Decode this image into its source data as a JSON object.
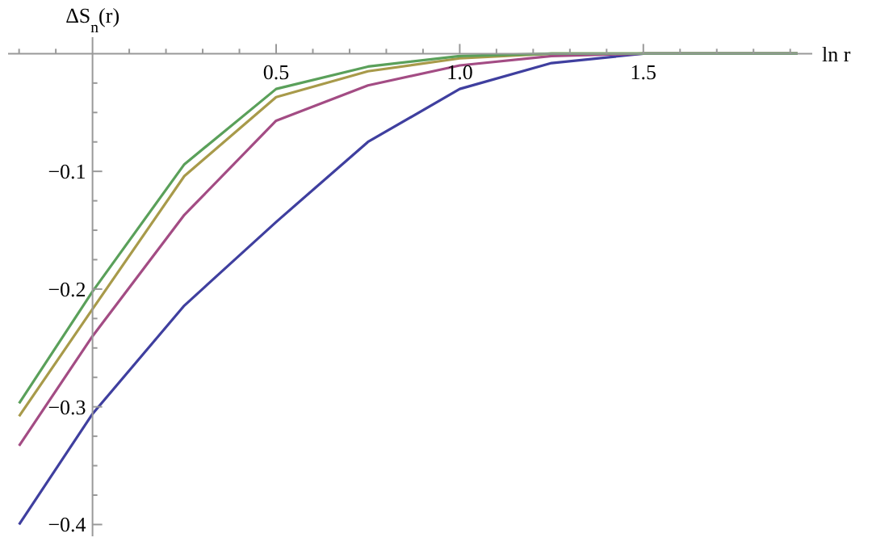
{
  "chart_data": {
    "type": "line",
    "xlabel": "ln r",
    "ylabel": "ΔS$_{n}$(r)",
    "x": [
      -0.2,
      0,
      0.25,
      0.5,
      0.75,
      1.0,
      1.25,
      1.5,
      1.92
    ],
    "series": [
      {
        "color": "#3f3f9f",
        "values": [
          -0.4,
          -0.306,
          -0.214,
          -0.143,
          -0.075,
          -0.03,
          -0.008,
          0,
          0
        ]
      },
      {
        "color": "#a34c84",
        "values": [
          -0.333,
          -0.24,
          -0.137,
          -0.057,
          -0.027,
          -0.01,
          -0.002,
          0,
          0
        ]
      },
      {
        "color": "#a89a4a",
        "values": [
          -0.308,
          -0.217,
          -0.104,
          -0.037,
          -0.015,
          -0.004,
          0,
          0,
          0
        ]
      },
      {
        "color": "#5aa05a",
        "values": [
          -0.297,
          -0.202,
          -0.094,
          -0.03,
          -0.011,
          -0.002,
          0,
          0,
          0
        ]
      }
    ],
    "xlim": [
      -0.23,
      1.96
    ],
    "ylim": [
      -0.41,
      0.014
    ],
    "xticks": [
      {
        "value": -0.2,
        "label": null
      },
      {
        "value": -0.1,
        "label": null
      },
      {
        "value": 0.1,
        "label": null
      },
      {
        "value": 0.2,
        "label": null
      },
      {
        "value": 0.3,
        "label": null
      },
      {
        "value": 0.4,
        "label": null
      },
      0.5,
      {
        "value": 0.6,
        "label": null
      },
      {
        "value": 0.7,
        "label": null
      },
      {
        "value": 0.8,
        "label": null
      },
      {
        "value": 0.9,
        "label": null
      },
      {
        "value": 1,
        "label": "1.0"
      },
      {
        "value": 1.1,
        "label": null
      },
      {
        "value": 1.2,
        "label": null
      },
      {
        "value": 1.3,
        "label": null
      },
      {
        "value": 1.4,
        "label": null
      },
      1.5,
      {
        "value": 1.6,
        "label": null
      },
      {
        "value": 1.7,
        "label": null
      },
      {
        "value": 1.8,
        "label": null
      },
      {
        "value": 1.9,
        "label": null
      }
    ],
    "yticks": [
      {
        "value": -0.025,
        "label": null
      },
      {
        "value": -0.05,
        "label": null
      },
      {
        "value": -0.075,
        "label": null
      },
      -0.1,
      {
        "value": -0.125,
        "label": null
      },
      {
        "value": -0.15,
        "label": null
      },
      {
        "value": -0.175,
        "label": null
      },
      -0.2,
      {
        "value": -0.225,
        "label": null
      },
      {
        "value": -0.25,
        "label": null
      },
      {
        "value": -0.275,
        "label": null
      },
      -0.3,
      {
        "value": -0.325,
        "label": null
      },
      {
        "value": -0.35,
        "label": null
      },
      {
        "value": -0.375,
        "label": null
      },
      -0.4
    ],
    "grid": false,
    "legend": false,
    "marker": "none",
    "line_style": "solid"
  }
}
